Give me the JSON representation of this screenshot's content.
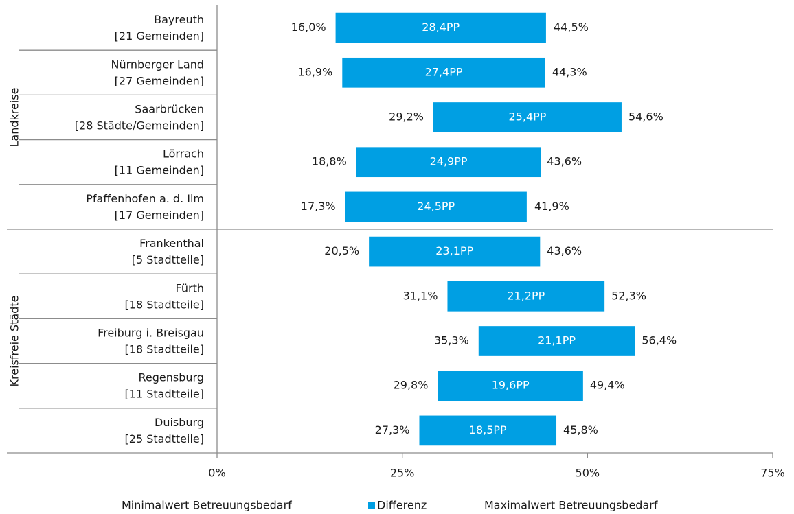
{
  "chart_data": {
    "type": "floating-bar",
    "orientation": "horizontal",
    "groups": [
      {
        "name": "Landkreise",
        "categories": [
          [
            "Bayreuth",
            "[21 Gemeinden]"
          ],
          [
            "Nürnberger Land",
            "[27 Gemeinden]"
          ],
          [
            "Saarbrücken",
            "[28 Städte/Gemeinden]"
          ],
          [
            "Lörrach",
            "[11 Gemeinden]"
          ],
          [
            "Pfaffenhofen a. d. Ilm",
            "[17 Gemeinden]"
          ]
        ]
      },
      {
        "name": "Kreisfreie Städte",
        "categories": [
          [
            "Frankenthal",
            "[5 Stadtteile]"
          ],
          [
            "Fürth",
            "[18 Stadtteile]"
          ],
          [
            "Freiburg i. Breisgau",
            "[18 Stadtteile]"
          ],
          [
            "Regensburg",
            "[11 Stadtteile]"
          ],
          [
            "Duisburg",
            "[25 Stadtteile]"
          ]
        ]
      }
    ],
    "series": [
      {
        "name": "Minimalwert Betreuungsbedarf",
        "color": null,
        "values": [
          16.0,
          16.9,
          29.2,
          18.8,
          17.3,
          20.5,
          31.1,
          35.3,
          29.8,
          27.3
        ],
        "value_labels": [
          "16,0%",
          "16,9%",
          "29,2%",
          "18,8%",
          "17,3%",
          "20,5%",
          "31,1%",
          "35,3%",
          "29,8%",
          "27,3%"
        ]
      },
      {
        "name": "Differenz",
        "color": "#009fe3",
        "values": [
          28.4,
          27.4,
          25.4,
          24.9,
          24.5,
          23.1,
          21.2,
          21.1,
          19.6,
          18.5
        ],
        "value_labels": [
          "28,4PP",
          "27,4PP",
          "25,4PP",
          "24,9PP",
          "24,5PP",
          "23,1PP",
          "21,2PP",
          "21,1PP",
          "19,6PP",
          "18,5PP"
        ]
      },
      {
        "name": "Maximalwert Betreuungsbedarf",
        "color": null,
        "values": [
          44.5,
          44.3,
          54.6,
          43.6,
          41.9,
          43.6,
          52.3,
          56.4,
          49.4,
          45.8
        ],
        "value_labels": [
          "44,5%",
          "44,3%",
          "54,6%",
          "43,6%",
          "41,9%",
          "43,6%",
          "52,3%",
          "56,4%",
          "49,4%",
          "45,8%"
        ]
      }
    ],
    "xlim": [
      0,
      75
    ],
    "xticks": [
      {
        "value": 0,
        "label": "0%"
      },
      {
        "value": 25,
        "label": "25%"
      },
      {
        "value": 50,
        "label": "50%"
      },
      {
        "value": 75,
        "label": "75%"
      }
    ],
    "grid": false,
    "legend": "bottom"
  }
}
